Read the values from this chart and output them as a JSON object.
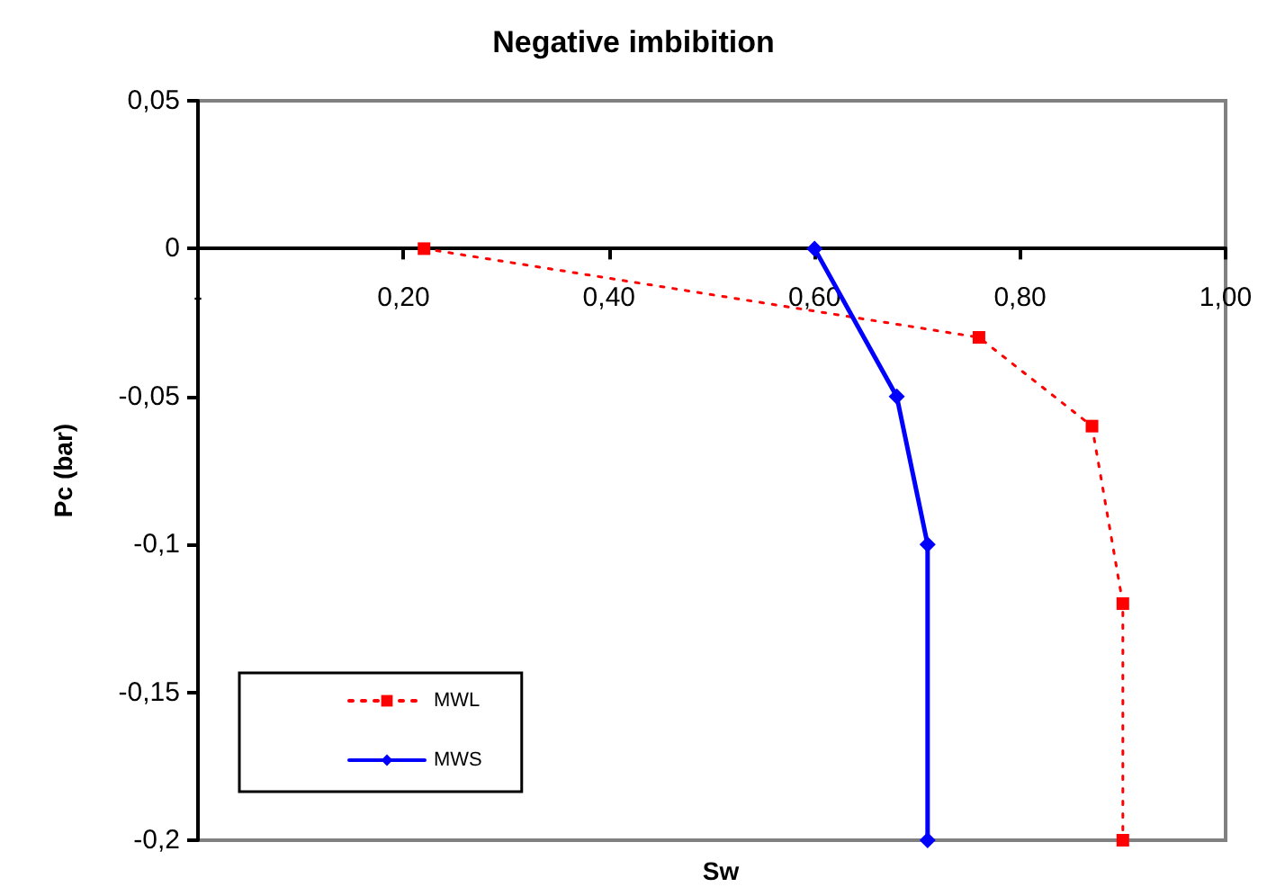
{
  "chart_data": {
    "type": "line",
    "title": "Negative imbibition",
    "xlabel": "Sw",
    "ylabel": "Pc (bar)",
    "xlim": [
      0,
      1
    ],
    "xticks": [
      {
        "value": 0,
        "label": "-"
      },
      {
        "value": 0.2,
        "label": "0,20"
      },
      {
        "value": 0.4,
        "label": "0,40"
      },
      {
        "value": 0.6,
        "label": "0,60"
      },
      {
        "value": 0.8,
        "label": "0,80"
      },
      {
        "value": 1,
        "label": "1,00"
      }
    ],
    "ylim": [
      -0.2,
      0.05
    ],
    "yticks": [
      {
        "value": 0.05,
        "label": "0,05"
      },
      {
        "value": 0,
        "label": "0"
      },
      {
        "value": -0.05,
        "label": "-0,05"
      },
      {
        "value": -0.1,
        "label": "-0,1"
      },
      {
        "value": -0.15,
        "label": "-0,15"
      },
      {
        "value": -0.2,
        "label": "-0,2"
      }
    ],
    "grid": false,
    "legend": "bottom left",
    "series": [
      {
        "name": "MWL",
        "color": "#ff0000",
        "marker": "square",
        "line_style": "dotted",
        "x": [
          0.22,
          0.76,
          0.87,
          0.9,
          0.9
        ],
        "values": [
          0,
          -0.03,
          -0.06,
          -0.12,
          -0.2
        ]
      },
      {
        "name": "MWS",
        "color": "#0000ff",
        "marker": "diamond",
        "line_style": "solid",
        "x": [
          0.6,
          0.68,
          0.71,
          0.71
        ],
        "values": [
          0,
          -0.05,
          -0.1,
          -0.2
        ]
      }
    ]
  }
}
